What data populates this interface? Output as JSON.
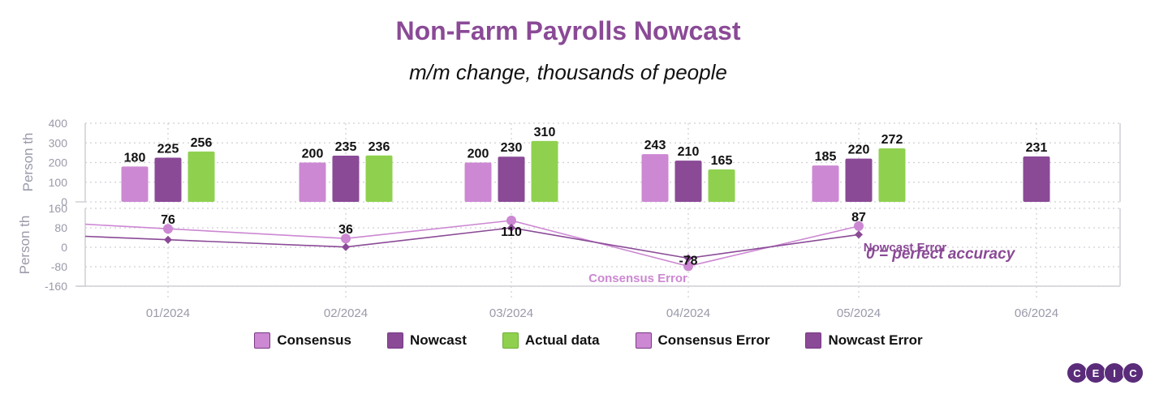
{
  "title": "Non-Farm Payrolls Nowcast",
  "subtitle": "m/m change, thousands of people",
  "chart_data": {
    "type": "bar",
    "categories": [
      "01/2024",
      "02/2024",
      "03/2024",
      "04/2024",
      "05/2024",
      "06/2024"
    ],
    "grid": true,
    "legend_position": "bottom",
    "panels": [
      {
        "name": "levels",
        "type": "bar",
        "ylabel": "Person th",
        "ylim": [
          0,
          400
        ],
        "yticks": [
          0,
          100,
          200,
          300,
          400
        ],
        "series": [
          {
            "name": "Consensus",
            "color": "#cc88d2",
            "values": [
              180,
              200,
              200,
              243,
              185,
              null
            ]
          },
          {
            "name": "Nowcast",
            "color": "#8a4a96",
            "values": [
              225,
              235,
              230,
              210,
              220,
              231
            ]
          },
          {
            "name": "Actual data",
            "color": "#8fd14f",
            "values": [
              256,
              236,
              310,
              165,
              272,
              null
            ]
          }
        ]
      },
      {
        "name": "errors",
        "type": "line",
        "ylabel": "Person th",
        "ylim": [
          -160,
          160
        ],
        "yticks": [
          -160,
          -80,
          0,
          80,
          160
        ],
        "ytick_labels": [
          "-160",
          "-80",
          "0",
          "80",
          "160"
        ],
        "series": [
          {
            "name": "Consensus Error",
            "color": "#cc88d2",
            "marker": "circle",
            "values": [
              76,
              36,
              110,
              -78,
              87,
              null
            ]
          },
          {
            "name": "Nowcast Error",
            "color": "#8a4a96",
            "marker": "diamond",
            "values": [
              31,
              1,
              80,
              -45,
              52,
              null
            ]
          }
        ],
        "point_labels": [
          {
            "index": 0,
            "text": "76"
          },
          {
            "index": 1,
            "text": "36"
          },
          {
            "index": 2,
            "text": "110"
          },
          {
            "index": 3,
            "text": "-78"
          },
          {
            "index": 4,
            "text": "87"
          }
        ],
        "annotations": {
          "consensus_error": "Consensus Error",
          "nowcast_error": "Nowcast Error",
          "zero_note": "0 = perfect accuracy"
        }
      }
    ]
  },
  "legend": [
    {
      "label": "Consensus",
      "color": "#cc88d2"
    },
    {
      "label": "Nowcast",
      "color": "#8a4a96"
    },
    {
      "label": "Actual data",
      "color": "#8fd14f"
    },
    {
      "label": "Consensus Error",
      "color": "#cc88d2"
    },
    {
      "label": "Nowcast Error",
      "color": "#8a4a96"
    }
  ],
  "logo": [
    "C",
    "E",
    "I",
    "C"
  ]
}
